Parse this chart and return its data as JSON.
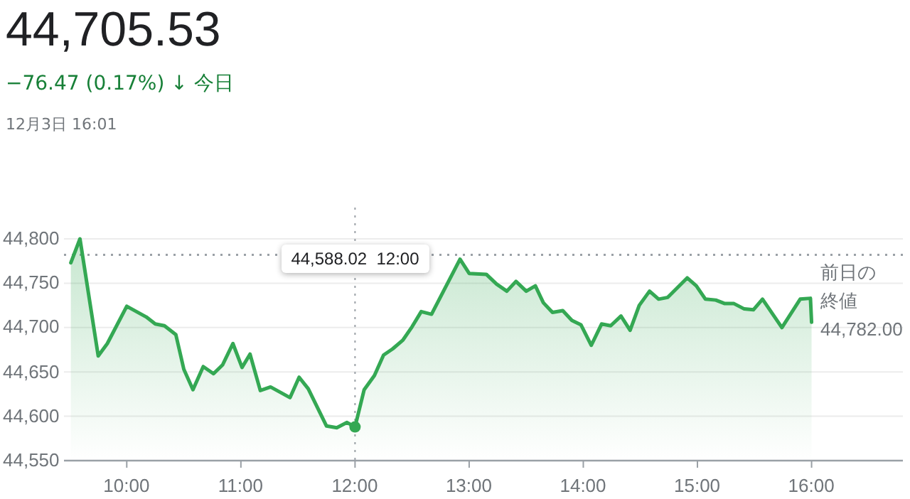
{
  "chart_data": {
    "type": "area",
    "title": "44,705.53",
    "subtitle": "−76.47 (0.17%) ↓ 今日",
    "annotations": [
      "12月3日 16:01",
      "44,588.02  12:00"
    ],
    "x": [
      9.51,
      9.59,
      9.75,
      9.83,
      10.0,
      10.17,
      10.25,
      10.33,
      10.43,
      10.5,
      10.58,
      10.67,
      10.76,
      10.84,
      10.93,
      11.01,
      11.08,
      11.17,
      11.26,
      11.43,
      11.51,
      11.59,
      11.75,
      11.84,
      11.93,
      12.0,
      12.08,
      12.17,
      12.25,
      12.33,
      12.42,
      12.5,
      12.58,
      12.67,
      12.92,
      13.0,
      13.15,
      13.24,
      13.33,
      13.41,
      13.5,
      13.58,
      13.65,
      13.73,
      13.82,
      13.9,
      13.98,
      14.07,
      14.16,
      14.24,
      14.33,
      14.41,
      14.49,
      14.58,
      14.66,
      14.74,
      14.91,
      14.99,
      15.07,
      15.16,
      15.24,
      15.32,
      15.41,
      15.49,
      15.57,
      15.74,
      15.9,
      15.99,
      16.0
    ],
    "values": [
      44773,
      44800,
      44668,
      44682,
      44724,
      44712,
      44704,
      44702,
      44692,
      44653,
      44630,
      44656,
      44648,
      44658,
      44682,
      44655,
      44670,
      44629,
      44633,
      44621,
      44644,
      44631,
      44589,
      44587,
      44593,
      44588,
      44630,
      44646,
      44669,
      44676,
      44686,
      44701,
      44718,
      44715,
      44777,
      44761,
      44760,
      44749,
      44741,
      44752,
      44741,
      44747,
      44728,
      44717,
      44719,
      44708,
      44703,
      44680,
      44704,
      44702,
      44713,
      44697,
      44725,
      44741,
      44732,
      44734,
      44756,
      44747,
      44732,
      44731,
      44727,
      44727,
      44721,
      44720,
      44732,
      44700,
      44732,
      44733,
      44706
    ],
    "color": "#34a853",
    "xlim": [
      9.45,
      16.8
    ],
    "xticks": [
      {
        "value": 10,
        "label": "10:00"
      },
      {
        "value": 11,
        "label": "11:00"
      },
      {
        "value": 12,
        "label": "12:00"
      },
      {
        "value": 13,
        "label": "13:00"
      },
      {
        "value": 14,
        "label": "14:00"
      },
      {
        "value": 15,
        "label": "15:00"
      },
      {
        "value": 16,
        "label": "16:00"
      }
    ],
    "ylim": [
      44550,
      44800
    ],
    "yticks": [
      {
        "value": 44550,
        "label": "44,550"
      },
      {
        "value": 44600,
        "label": "44,600"
      },
      {
        "value": 44650,
        "label": "44,650"
      },
      {
        "value": 44700,
        "label": "44,700"
      },
      {
        "value": 44750,
        "label": "44,750"
      },
      {
        "value": 44800,
        "label": "44,800"
      }
    ],
    "grid": "y",
    "ref_lines": [
      {
        "axis": "y",
        "value": 44782,
        "label": "前日の終値 44,782.00",
        "line_style": "dotted"
      },
      {
        "axis": "x",
        "value": 12,
        "line_style": "dotted"
      }
    ]
  }
}
